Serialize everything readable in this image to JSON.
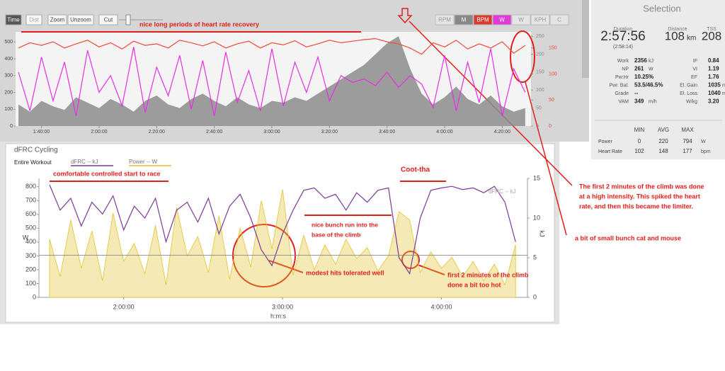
{
  "toolbar": {
    "left": [
      "Time",
      "Dist",
      "Zoom",
      "Unzoom",
      "Cut"
    ],
    "right": [
      "RPM",
      "M",
      "BPM",
      "W",
      "W",
      "KPH",
      "C"
    ]
  },
  "chart_data": [
    {
      "type": "line",
      "legend": false,
      "grid": false,
      "xlim": [
        5460,
        16200
      ],
      "xticks": [
        {
          "value": 6000,
          "label": "1:40:00"
        },
        {
          "value": 7200,
          "label": "2:00:00"
        },
        {
          "value": 8400,
          "label": "2:20:00"
        },
        {
          "value": 9600,
          "label": "2:40:00"
        },
        {
          "value": 10800,
          "label": "3:00:00"
        },
        {
          "value": 12000,
          "label": "3:20:00"
        },
        {
          "value": 13200,
          "label": "3:40:00"
        },
        {
          "value": 14400,
          "label": "4:00:00"
        },
        {
          "value": 15600,
          "label": "4:20:00"
        }
      ],
      "ylim": [
        0,
        560
      ],
      "yticks": [
        0,
        100,
        200,
        300,
        400,
        500
      ],
      "y2lim": [
        0,
        181
      ],
      "y2ticks": [
        0,
        50,
        100,
        150
      ],
      "y3lim": [
        0,
        262
      ],
      "y3ticks": [
        0,
        50,
        100,
        150,
        200,
        250
      ],
      "x": [
        5520,
        5760,
        6000,
        6240,
        6480,
        6720,
        6960,
        7200,
        7440,
        7680,
        7920,
        8160,
        8400,
        8640,
        8880,
        9120,
        9360,
        9600,
        9840,
        10080,
        10320,
        10560,
        10800,
        11040,
        11280,
        11520,
        11760,
        12000,
        12240,
        12480,
        12720,
        12960,
        13200,
        13440,
        13680,
        13920,
        14160,
        14400,
        14640,
        14880,
        15120,
        15360,
        15600,
        15840,
        16080
      ],
      "series": [
        {
          "style": "area",
          "axis": "y3",
          "color": "#8c8c8c",
          "values": [
            60,
            40,
            70,
            55,
            45,
            80,
            65,
            50,
            75,
            60,
            40,
            70,
            85,
            60,
            50,
            75,
            90,
            70,
            55,
            80,
            60,
            50,
            70,
            65,
            80,
            70,
            90,
            110,
            130,
            150,
            170,
            200,
            230,
            250,
            160,
            90,
            60,
            80,
            110,
            75,
            60,
            85,
            55,
            40,
            50
          ]
        },
        {
          "style": "line",
          "axis": "y",
          "color": "#e62ee6",
          "values": [
            320,
            90,
            410,
            150,
            380,
            60,
            450,
            200,
            300,
            120,
            470,
            80,
            350,
            180,
            420,
            100,
            390,
            60,
            440,
            140,
            330,
            90,
            460,
            120,
            380,
            200,
            410,
            150,
            300,
            260,
            280,
            240,
            320,
            230,
            300,
            250,
            110,
            420,
            90,
            380,
            140,
            460,
            60,
            340,
            200
          ]
        },
        {
          "style": "line",
          "axis": "y2",
          "color": "#ee4b3a",
          "values": [
            150,
            160,
            155,
            162,
            150,
            158,
            165,
            152,
            160,
            148,
            163,
            155,
            158,
            150,
            165,
            160,
            154,
            162,
            150,
            158,
            163,
            150,
            160,
            156,
            164,
            152,
            158,
            165,
            160,
            163,
            166,
            168,
            162,
            158,
            150,
            138,
            160,
            152,
            165,
            148,
            158,
            150,
            162,
            140,
            155
          ]
        }
      ]
    },
    {
      "type": "line",
      "legend": true,
      "grid": false,
      "title": "dFRC Cycling",
      "subtitle": "Entire Workout",
      "ylabel": "W",
      "y2label": "kJ",
      "xlabel": "h:m:s",
      "xlim": [
        5280,
        16350
      ],
      "xticks": [
        {
          "value": 7200,
          "label": "2:00:00"
        },
        {
          "value": 10800,
          "label": "3:00:00"
        },
        {
          "value": 14400,
          "label": "4:00:00"
        }
      ],
      "ylim": [
        0,
        860
      ],
      "yticks": [
        0,
        100,
        200,
        300,
        400,
        500,
        600,
        700,
        800
      ],
      "y2lim": [
        0,
        15
      ],
      "y2ticks": [
        0,
        5,
        10,
        15
      ],
      "threshold": 305,
      "x": [
        5520,
        5760,
        6000,
        6240,
        6480,
        6720,
        6960,
        7200,
        7440,
        7680,
        7920,
        8160,
        8400,
        8640,
        8880,
        9120,
        9360,
        9600,
        9840,
        10080,
        10320,
        10560,
        10800,
        11040,
        11280,
        11520,
        11760,
        12000,
        12240,
        12480,
        12720,
        12960,
        13200,
        13440,
        13680,
        13920,
        14160,
        14400,
        14640,
        14880,
        15120,
        15360,
        15600,
        15840,
        16080
      ],
      "series": [
        {
          "name": "dFRC  -- kJ",
          "style": "line",
          "axis": "y2",
          "color": "#7b3a96",
          "values": [
            14.2,
            11,
            12.5,
            9,
            12,
            10.5,
            12.8,
            8.5,
            11.5,
            10,
            12.5,
            7,
            11,
            12,
            9.5,
            12.5,
            8,
            11.5,
            13,
            10,
            6,
            4,
            8,
            11,
            13.5,
            13.8,
            12.5,
            13,
            11,
            13.2,
            12,
            13.5,
            13.8,
            5,
            3,
            10,
            13.5,
            13.8,
            14,
            13.6,
            13.8,
            13.2,
            14,
            12,
            7
          ]
        },
        {
          "name": "Power  -- W",
          "style": "area",
          "axis": "y",
          "color": "#e3c22a",
          "values": [
            420,
            150,
            560,
            210,
            480,
            120,
            610,
            260,
            390,
            170,
            520,
            90,
            650,
            300,
            440,
            180,
            590,
            130,
            500,
            220,
            700,
            350,
            780,
            160,
            450,
            200,
            380,
            240,
            420,
            280,
            360,
            190,
            300,
            620,
            560,
            180,
            330,
            210,
            290,
            150,
            260,
            120,
            240,
            90,
            380
          ]
        }
      ]
    }
  ],
  "sidebar": {
    "title": "Selection",
    "summary": [
      {
        "label": "Duration",
        "value": "2:57:56",
        "sub": "(2:58:14)"
      },
      {
        "label": "Distance",
        "value": "108",
        "unit": "km"
      },
      {
        "label": "TSS",
        "value": "208"
      }
    ],
    "metrics": [
      [
        {
          "label": "Work",
          "value": "2356",
          "unit": "kJ"
        },
        {
          "label": "IF",
          "value": "0.84"
        }
      ],
      [
        {
          "label": "NP",
          "value": "261",
          "unit": "W"
        },
        {
          "label": "VI",
          "value": "1.19"
        }
      ],
      [
        {
          "label": "Pw:Hr",
          "value": "10.25%"
        },
        {
          "label": "EF",
          "value": "1.76"
        }
      ],
      [
        {
          "label": "Pwr. Bal.",
          "value": "53.5/46.5%"
        },
        {
          "label": "El. Gain",
          "value": "1035",
          "unit": "m"
        }
      ],
      [
        {
          "label": "Grade",
          "value": "--"
        },
        {
          "label": "El. Loss",
          "value": "1040",
          "unit": "m"
        }
      ],
      [
        {
          "label": "VAM",
          "value": "349",
          "unit": "m/h"
        },
        {
          "label": "W/kg",
          "value": "3.20"
        }
      ]
    ],
    "table": {
      "header": [
        "MIN",
        "AVG",
        "MAX"
      ],
      "rows": [
        {
          "label": "Power",
          "values": [
            0,
            220,
            794
          ],
          "unit": "W"
        },
        {
          "label": "Heart Rate",
          "values": [
            102,
            148,
            177
          ],
          "unit": "bpm"
        }
      ]
    }
  },
  "annotations": [
    {
      "lines": [
        "nice long periods of heart rate recovery"
      ]
    },
    {
      "lines": [
        "comfortable controlled start to race"
      ]
    },
    {
      "lines": [
        "Coot-tha"
      ]
    },
    {
      "lines": [
        "nice bunch run into the",
        "base of the climb"
      ]
    },
    {
      "lines": [
        "modest hits tolerated well"
      ]
    },
    {
      "lines": [
        "first 2 minutes of the climb",
        "done a bit too hot"
      ]
    },
    {
      "lines": [
        "The first 2 minutes of the climb was done",
        "at a high intensity. This spiked the heart",
        "rate, and then this became the limiter."
      ]
    },
    {
      "lines": [
        "a bit of small bunch cat and mouse"
      ]
    }
  ]
}
